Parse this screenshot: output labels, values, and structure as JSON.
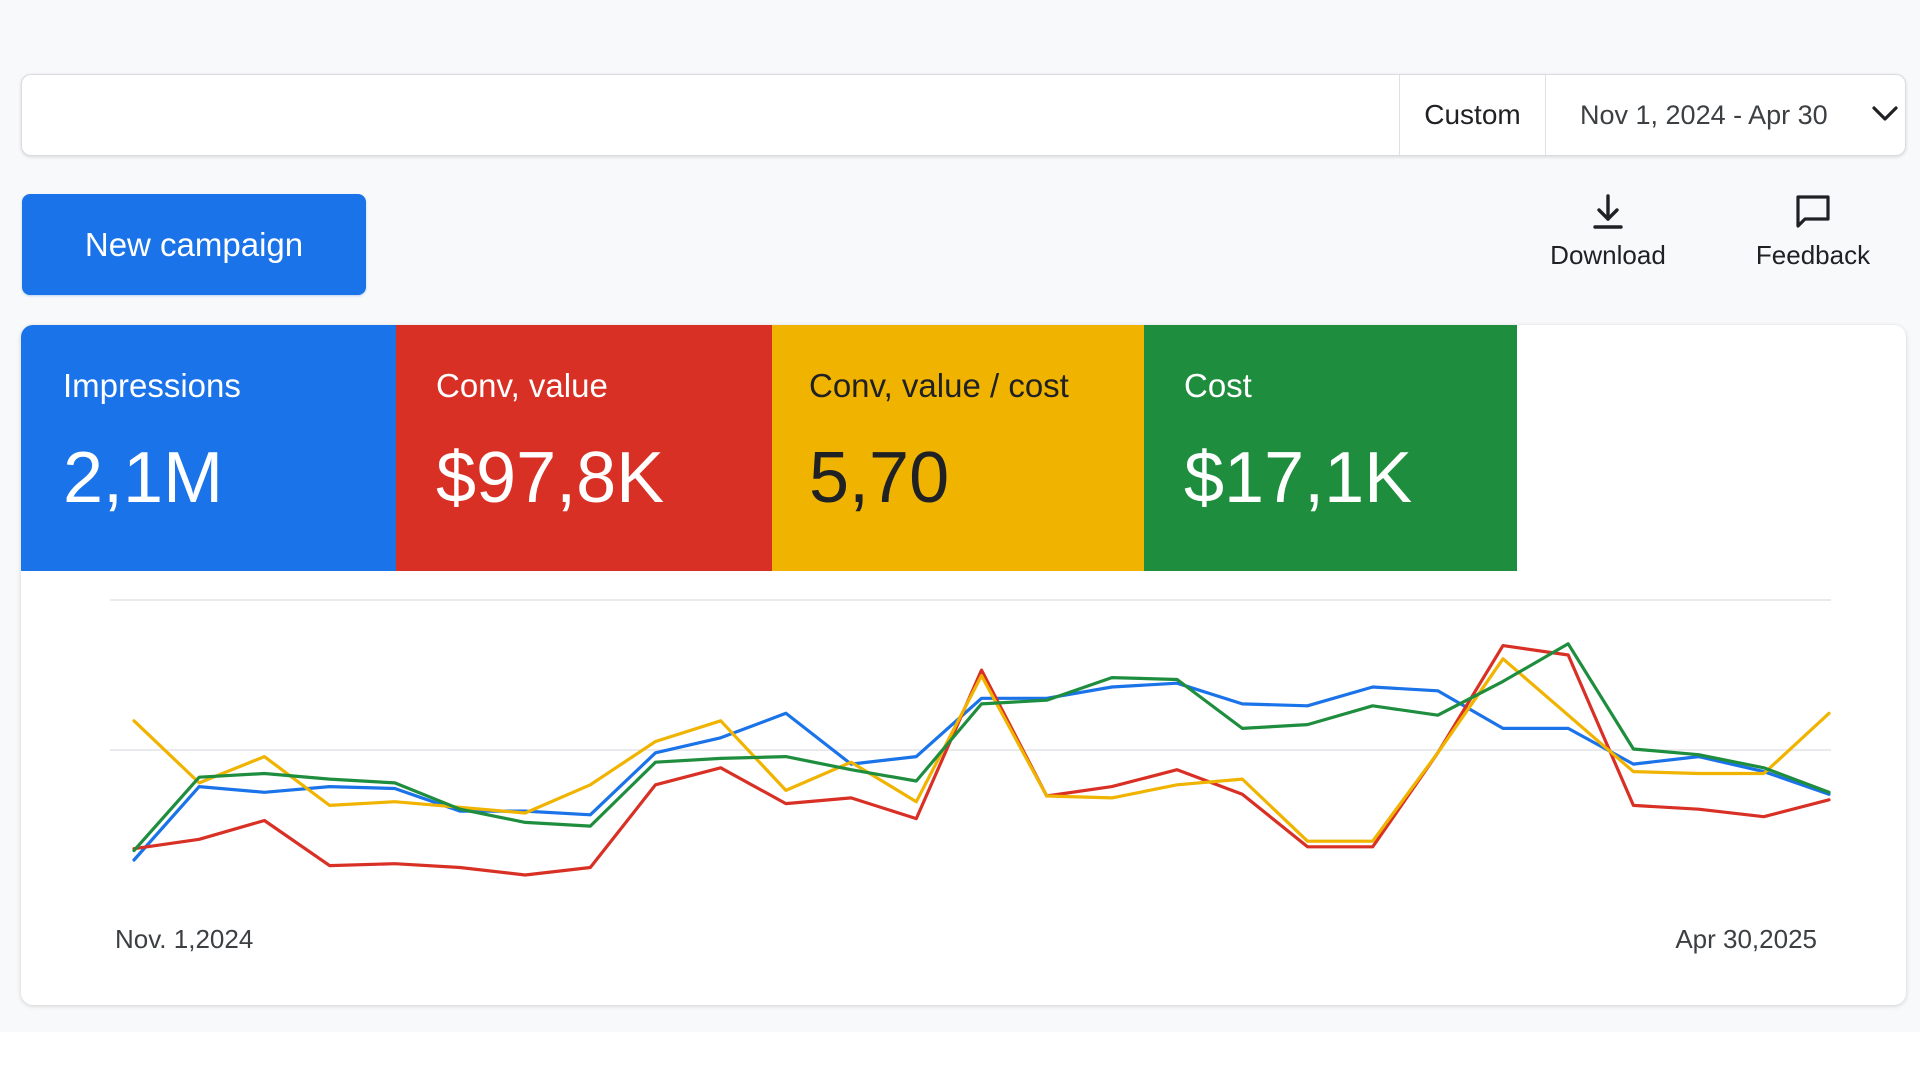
{
  "filter": {
    "custom_label": "Custom",
    "date_range": "Nov 1, 2024 - Apr 30"
  },
  "toolbar": {
    "new_campaign_label": "New campaign",
    "download_label": "Download",
    "feedback_label": "Feedback"
  },
  "metrics": [
    {
      "label": "Impressions",
      "value": "2,1M",
      "color": "#1a73e8"
    },
    {
      "label": "Conv, value",
      "value": "$97,8K",
      "color": "#d93025"
    },
    {
      "label": "Conv, value / cost",
      "value": "5,70",
      "color": "#f0b400"
    },
    {
      "label": "Cost",
      "value": "$17,1K",
      "color": "#1e8e3e"
    }
  ],
  "chart_data": {
    "type": "line",
    "title": "",
    "xlabel": "",
    "ylabel": "",
    "x_tick_labels": [
      "Nov. 1,2024",
      "Apr  30,2025"
    ],
    "grid": true,
    "ylim": [
      0,
      100
    ],
    "series": [
      {
        "color": "#1a73e8",
        "values": [
          8,
          47,
          44,
          47,
          46,
          34,
          34,
          32,
          65,
          73,
          86,
          59,
          63,
          94,
          94,
          100,
          102,
          91,
          90,
          100,
          98,
          78,
          78,
          59,
          63,
          55,
          43
        ]
      },
      {
        "color": "#d93025",
        "values": [
          14,
          19,
          29,
          5,
          6,
          4,
          0,
          4,
          48,
          57,
          38,
          41,
          30,
          109,
          42,
          47,
          56,
          43,
          15,
          15,
          65,
          122,
          117,
          37,
          35,
          31,
          40
        ]
      },
      {
        "color": "#f0b400",
        "values": [
          82,
          49,
          63,
          37,
          39,
          36,
          33,
          48,
          71,
          82,
          45,
          60,
          39,
          106,
          42,
          41,
          48,
          51,
          18,
          18,
          65,
          115,
          85,
          55,
          54,
          54,
          86
        ]
      },
      {
        "color": "#1e8e3e",
        "values": [
          13,
          52,
          54,
          51,
          49,
          35,
          28,
          26,
          60,
          62,
          63,
          56,
          50,
          91,
          93,
          105,
          104,
          78,
          80,
          90,
          85,
          103,
          123,
          67,
          64,
          57,
          44
        ]
      }
    ]
  }
}
